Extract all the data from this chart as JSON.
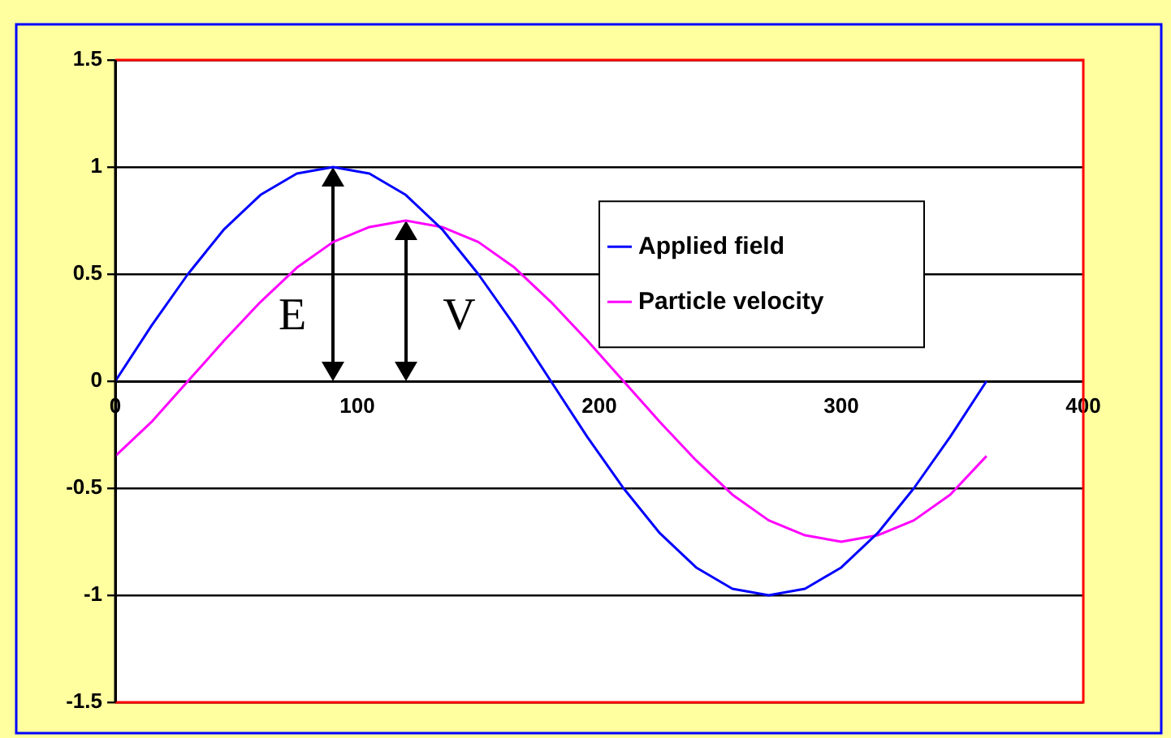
{
  "chart_data": {
    "type": "line",
    "x": [
      0,
      15,
      30,
      45,
      60,
      75,
      90,
      105,
      120,
      135,
      150,
      165,
      180,
      195,
      210,
      225,
      240,
      255,
      270,
      285,
      300,
      315,
      330,
      345,
      360
    ],
    "series": [
      {
        "name": "Applied field",
        "color": "#0000ff",
        "values": [
          0,
          0.26,
          0.5,
          0.71,
          0.87,
          0.97,
          1,
          0.97,
          0.87,
          0.71,
          0.5,
          0.26,
          0,
          -0.26,
          -0.5,
          -0.71,
          -0.87,
          -0.97,
          -1,
          -0.97,
          -0.87,
          -0.71,
          -0.5,
          -0.26,
          0
        ]
      },
      {
        "name": "Particle velocity",
        "color": "#ff00ff",
        "values": [
          -0.35,
          -0.19,
          0,
          0.19,
          0.37,
          0.53,
          0.65,
          0.72,
          0.75,
          0.72,
          0.65,
          0.53,
          0.37,
          0.19,
          0,
          -0.19,
          -0.37,
          -0.53,
          -0.65,
          -0.72,
          -0.75,
          -0.72,
          -0.65,
          -0.53,
          -0.35
        ]
      }
    ],
    "xlim": [
      0,
      400
    ],
    "xticks": [
      0,
      100,
      200,
      300,
      400
    ],
    "ylim": [
      -1.5,
      1.5
    ],
    "yticks": [
      -1.5,
      -1,
      -0.5,
      0,
      0.5,
      1,
      1.5
    ],
    "grid": "y",
    "legend": "right",
    "line_style": "solid",
    "annotations": [
      {
        "text": "E",
        "x": 90,
        "y": 1
      },
      {
        "text": "V",
        "x": 120,
        "y": 0.75
      }
    ]
  }
}
